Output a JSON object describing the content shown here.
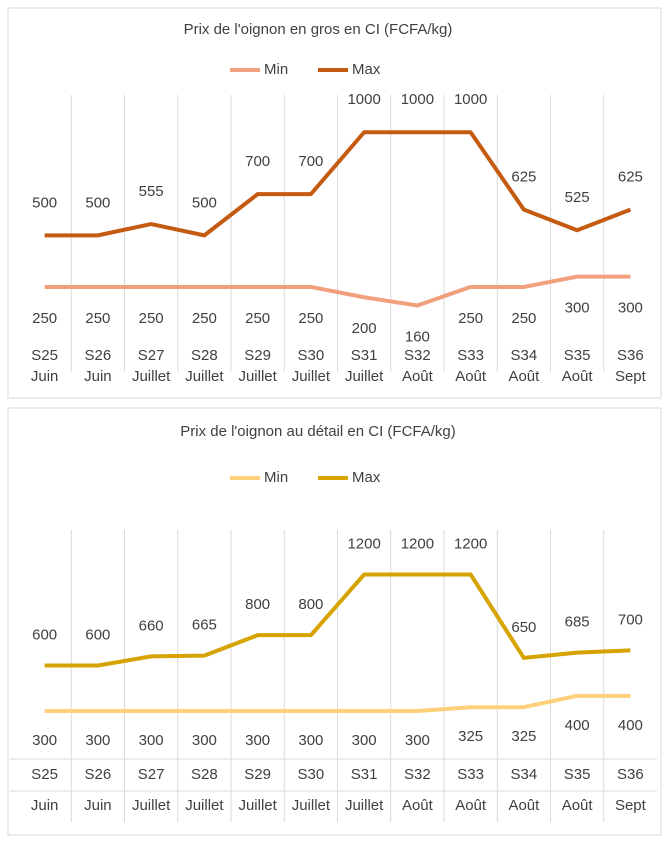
{
  "chart_data": [
    {
      "type": "line",
      "title": "Prix de l'oignon en gros en CI (FCFA/kg)",
      "categories": [
        [
          "S25",
          "Juin"
        ],
        [
          "S26",
          "Juin"
        ],
        [
          "S27",
          "Juillet"
        ],
        [
          "S28",
          "Juillet"
        ],
        [
          "S29",
          "Juillet"
        ],
        [
          "S30",
          "Juillet"
        ],
        [
          "S31",
          "Juillet"
        ],
        [
          "S32",
          "Août"
        ],
        [
          "S33",
          "Août"
        ],
        [
          "S34",
          "Août"
        ],
        [
          "S35",
          "Août"
        ],
        [
          "S36",
          "Sept"
        ]
      ],
      "series": [
        {
          "name": "Min",
          "color": "#f1a07e",
          "values": [
            250,
            250,
            250,
            250,
            250,
            250,
            200,
            160,
            250,
            250,
            300,
            300
          ]
        },
        {
          "name": "Max",
          "color": "#c55a11",
          "values": [
            500,
            500,
            555,
            500,
            700,
            700,
            1000,
            1000,
            1000,
            625,
            525,
            625
          ]
        }
      ],
      "ylim": [
        0,
        1200
      ],
      "legend": "top"
    },
    {
      "type": "line",
      "title": "Prix de l'oignon au détail en CI (FCFA/kg)",
      "categories": [
        [
          "S25",
          "Juin"
        ],
        [
          "S26",
          "Juin"
        ],
        [
          "S27",
          "Juillet"
        ],
        [
          "S28",
          "Juillet"
        ],
        [
          "S29",
          "Juillet"
        ],
        [
          "S30",
          "Juillet"
        ],
        [
          "S31",
          "Juillet"
        ],
        [
          "S32",
          "Août"
        ],
        [
          "S33",
          "Août"
        ],
        [
          "S34",
          "Août"
        ],
        [
          "S35",
          "Août"
        ],
        [
          "S36",
          "Sept"
        ]
      ],
      "series": [
        {
          "name": "Min",
          "color": "#ffd07a",
          "values": [
            300,
            300,
            300,
            300,
            300,
            300,
            300,
            300,
            325,
            325,
            400,
            400
          ]
        },
        {
          "name": "Max",
          "color": "#d6a300",
          "values": [
            600,
            600,
            660,
            665,
            800,
            800,
            1200,
            1200,
            1200,
            650,
            685,
            700
          ]
        }
      ],
      "ylim": [
        0,
        1500
      ],
      "legend": "top"
    }
  ]
}
